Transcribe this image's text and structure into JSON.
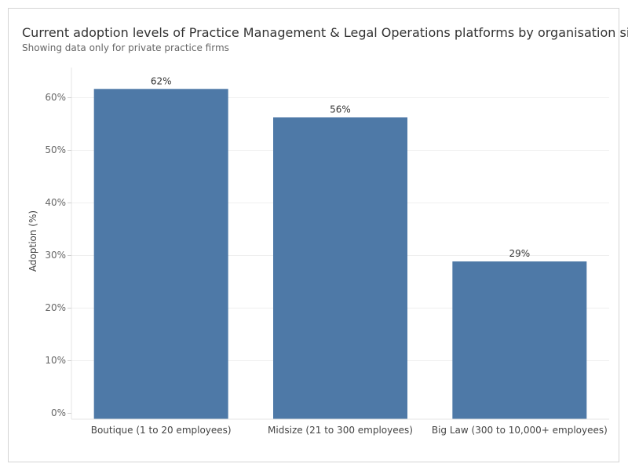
{
  "chart_data": {
    "type": "bar",
    "title": "Current adoption levels of Practice Management & Legal Operations platforms by organisation size",
    "subtitle": "Showing data only for private practice firms",
    "xlabel": "",
    "ylabel": "Adoption (%)",
    "categories": [
      "Boutique (1 to 20 employees)",
      "Midsize (21 to 300 employees)",
      "Big Law (300 to 10,000+ employees)"
    ],
    "values": [
      61.6,
      56.2,
      28.8
    ],
    "data_labels": [
      "62%",
      "56%",
      "29%"
    ],
    "ylim": [
      0,
      64
    ],
    "yticks": [
      0,
      10,
      20,
      30,
      40,
      50,
      60
    ],
    "ytick_labels": [
      "0%",
      "10%",
      "20%",
      "30%",
      "40%",
      "50%",
      "60%"
    ],
    "grid": true,
    "bar_color": "#4e79a7"
  }
}
